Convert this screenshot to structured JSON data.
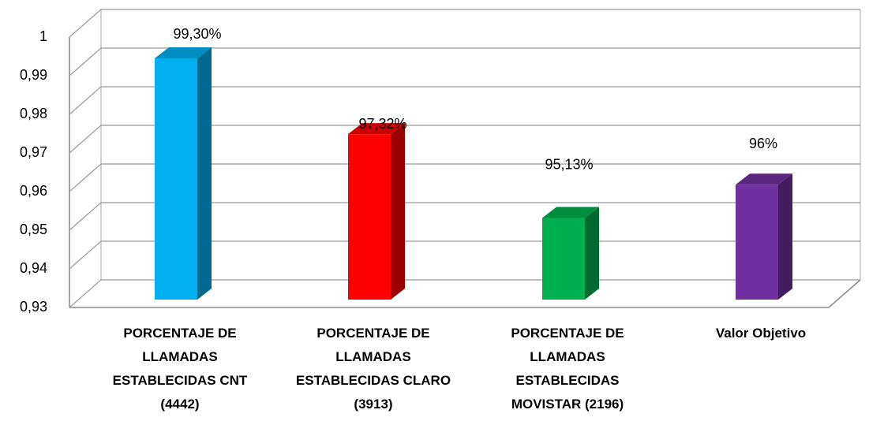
{
  "chart_data": {
    "type": "bar3d",
    "categories": [
      "PORCENTAJE DE LLAMADAS ESTABLECIDAS CNT (4442)",
      "PORCENTAJE DE LLAMADAS ESTABLECIDAS CLARO (3913)",
      "PORCENTAJE DE LLAMADAS ESTABLECIDAS MOVISTAR (2196)",
      "Valor Objetivo"
    ],
    "values": [
      0.993,
      0.9732,
      0.9513,
      0.96
    ],
    "value_labels": [
      "99,30%",
      "97,32%",
      "95,13%",
      "96%"
    ],
    "colors": [
      "#00b0f0",
      "#ff0000",
      "#00b050",
      "#7030a0"
    ],
    "ylim": [
      0.93,
      1
    ],
    "yticks": [
      {
        "value": 0.93,
        "label": "0,93"
      },
      {
        "value": 0.94,
        "label": "0,94"
      },
      {
        "value": 0.95,
        "label": "0,95"
      },
      {
        "value": 0.96,
        "label": "0,96"
      },
      {
        "value": 0.97,
        "label": "0,97"
      },
      {
        "value": 0.98,
        "label": "0,98"
      },
      {
        "value": 0.99,
        "label": "0,99"
      },
      1
    ],
    "grid": true
  }
}
